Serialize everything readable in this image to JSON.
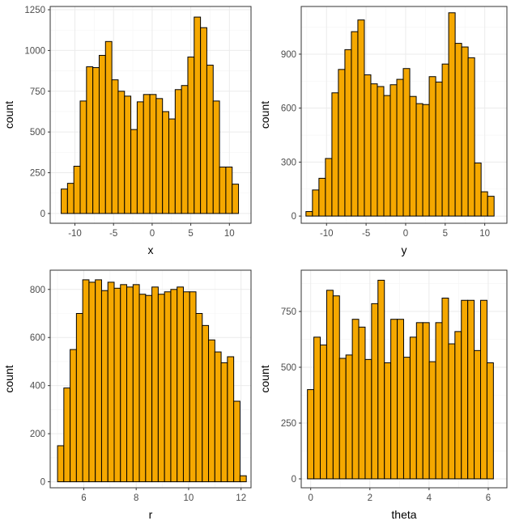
{
  "colors": {
    "bar_fill": "#F5A800",
    "bar_stroke": "#000000",
    "panel_border": "#333333",
    "grid_major": "#EBEBEB",
    "grid_minor": "#F5F5F5",
    "text": "#000000",
    "tick_text": "#4D4D4D"
  },
  "chart_data": [
    {
      "type": "histogram",
      "xlabel": "x",
      "ylabel": "count",
      "xlim": [
        -13.2,
        12.8
      ],
      "ylim": [
        -60,
        1270
      ],
      "bin_start": -12.6,
      "bin_width": 0.82,
      "values": [
        0,
        150,
        185,
        290,
        690,
        900,
        895,
        970,
        1055,
        820,
        750,
        720,
        515,
        685,
        730,
        730,
        705,
        625,
        580,
        760,
        785,
        960,
        1205,
        1140,
        910,
        690,
        285,
        285,
        180
      ],
      "xticks": [
        -10,
        -5,
        0,
        5,
        10
      ],
      "xtick_labels": [
        "-10",
        "-5",
        "0",
        "5",
        "10"
      ],
      "yticks": [
        0,
        250,
        500,
        750,
        1000,
        1250
      ],
      "ytick_labels": [
        "0",
        "250",
        "500",
        "750",
        "1000",
        "1250"
      ]
    },
    {
      "type": "histogram",
      "xlabel": "y",
      "ylabel": "count",
      "xlim": [
        -13.2,
        12.8
      ],
      "ylim": [
        -40,
        1165
      ],
      "bin_start": -12.6,
      "bin_width": 0.82,
      "values": [
        25,
        145,
        210,
        320,
        685,
        815,
        925,
        1025,
        1090,
        785,
        735,
        720,
        670,
        730,
        760,
        820,
        665,
        625,
        620,
        775,
        745,
        845,
        1130,
        960,
        940,
        880,
        295,
        135,
        110
      ],
      "xticks": [
        -10,
        -5,
        0,
        5,
        10
      ],
      "xtick_labels": [
        "-10",
        "-5",
        "0",
        "5",
        "10"
      ],
      "yticks": [
        0,
        300,
        600,
        900
      ],
      "ytick_labels": [
        "0",
        "300",
        "600",
        "900"
      ]
    },
    {
      "type": "histogram",
      "xlabel": "r",
      "ylabel": "count",
      "xlim": [
        4.72,
        12.38
      ],
      "ylim": [
        -25,
        880
      ],
      "bin_start": 5.0,
      "bin_width": 0.24,
      "values": [
        150,
        390,
        550,
        700,
        840,
        830,
        840,
        795,
        830,
        805,
        820,
        810,
        820,
        780,
        775,
        810,
        780,
        790,
        800,
        810,
        790,
        790,
        700,
        650,
        590,
        540,
        495,
        520,
        335,
        25
      ],
      "xticks": [
        6,
        8,
        10,
        12
      ],
      "xtick_labels": [
        "6",
        "8",
        "10",
        "12"
      ],
      "yticks": [
        0,
        200,
        400,
        600,
        800
      ],
      "ytick_labels": [
        "0",
        "200",
        "400",
        "600",
        "800"
      ]
    },
    {
      "type": "histogram",
      "xlabel": "theta",
      "ylabel": "count",
      "xlim": [
        -0.32,
        6.63
      ],
      "ylim": [
        -40,
        935
      ],
      "bin_start": -0.11,
      "bin_width": 0.2167,
      "values": [
        400,
        635,
        600,
        845,
        820,
        540,
        555,
        715,
        680,
        535,
        785,
        890,
        520,
        715,
        715,
        545,
        635,
        700,
        700,
        525,
        700,
        810,
        605,
        660,
        800,
        800,
        575,
        800,
        520
      ],
      "xticks": [
        0,
        2,
        4,
        6
      ],
      "xtick_labels": [
        "0",
        "2",
        "4",
        "6"
      ],
      "yticks": [
        0,
        250,
        500,
        750
      ],
      "ytick_labels": [
        "0",
        "250",
        "500",
        "750"
      ]
    }
  ]
}
